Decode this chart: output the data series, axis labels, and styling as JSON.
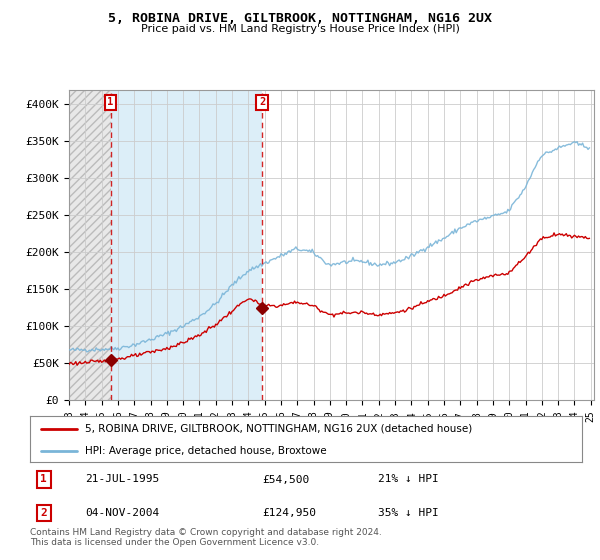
{
  "title": "5, ROBINA DRIVE, GILTBROOK, NOTTINGHAM, NG16 2UX",
  "subtitle": "Price paid vs. HM Land Registry's House Price Index (HPI)",
  "ylim": [
    0,
    420000
  ],
  "yticks": [
    0,
    50000,
    100000,
    150000,
    200000,
    250000,
    300000,
    350000,
    400000
  ],
  "ytick_labels": [
    "£0",
    "£50K",
    "£100K",
    "£150K",
    "£200K",
    "£250K",
    "£300K",
    "£350K",
    "£400K"
  ],
  "hpi_color": "#7ab5d8",
  "price_color": "#cc0000",
  "marker_color": "#8b0000",
  "shade_color": "#dceef8",
  "annotation1_label": "1",
  "annotation1_date": "21-JUL-1995",
  "annotation1_price": "£54,500",
  "annotation1_pct": "21% ↓ HPI",
  "annotation2_label": "2",
  "annotation2_date": "04-NOV-2004",
  "annotation2_price": "£124,950",
  "annotation2_pct": "35% ↓ HPI",
  "legend_line1": "5, ROBINA DRIVE, GILTBROOK, NOTTINGHAM, NG16 2UX (detached house)",
  "legend_line2": "HPI: Average price, detached house, Broxtowe",
  "footer": "Contains HM Land Registry data © Crown copyright and database right 2024.\nThis data is licensed under the Open Government Licence v3.0.",
  "sale1_x": 1995.55,
  "sale1_y": 54500,
  "sale2_x": 2004.84,
  "sale2_y": 124950,
  "xmin": 1993.0,
  "xmax": 2025.2
}
